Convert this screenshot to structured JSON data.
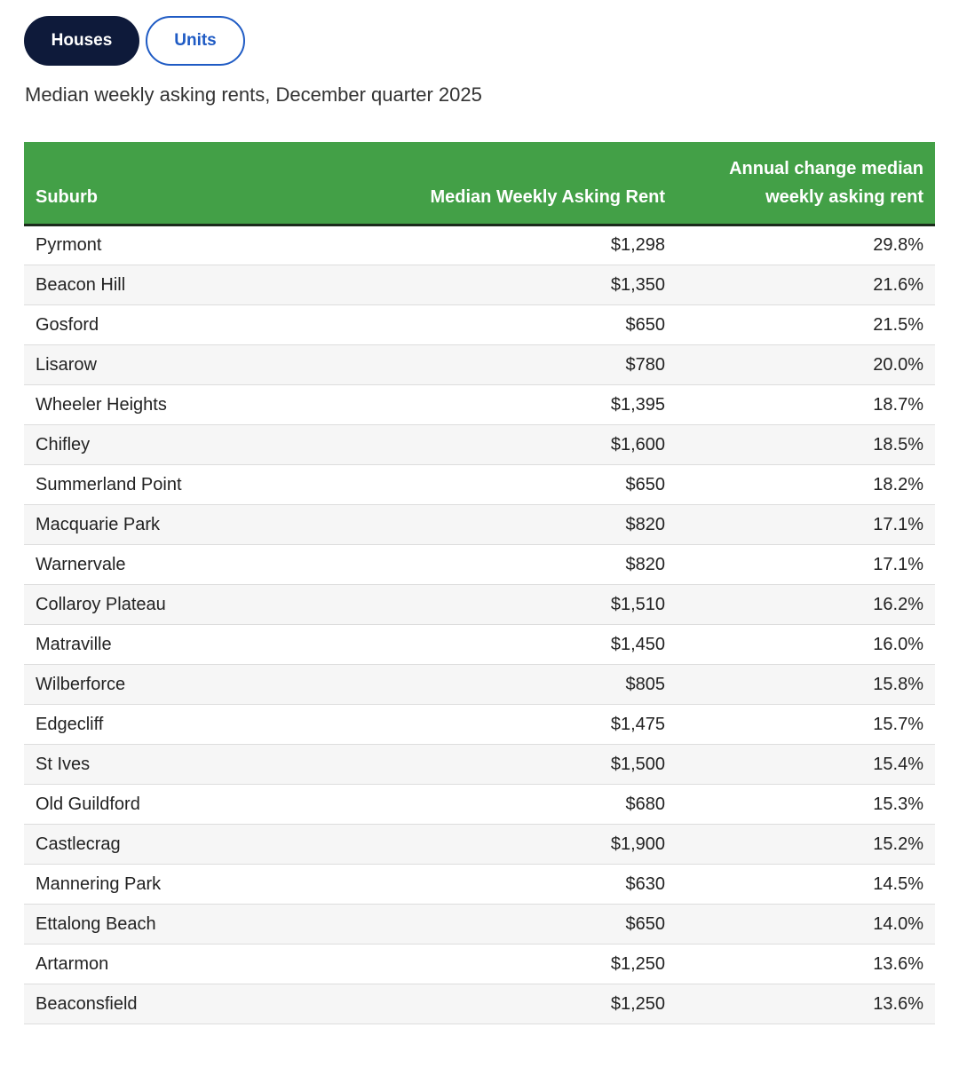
{
  "tabs": [
    "Houses",
    "Units"
  ],
  "subtitle": "Median weekly asking rents, December quarter 2025",
  "table": {
    "header": [
      "Suburb",
      "Median Weekly Asking Rent",
      "Annual change median weekly asking rent"
    ],
    "rows": [
      [
        "Pyrmont",
        "$1,298",
        "29.8%"
      ],
      [
        "Beacon Hill",
        "$1,350",
        "21.6%"
      ],
      [
        "Gosford",
        "$650",
        "21.5%"
      ],
      [
        "Lisarow",
        "$780",
        "20.0%"
      ],
      [
        "Wheeler Heights",
        "$1,395",
        "18.7%"
      ],
      [
        "Chifley",
        "$1,600",
        "18.5%"
      ],
      [
        "Summerland Point",
        "$650",
        "18.2%"
      ],
      [
        "Macquarie Park",
        "$820",
        "17.1%"
      ],
      [
        "Warnervale",
        "$820",
        "17.1%"
      ],
      [
        "Collaroy Plateau",
        "$1,510",
        "16.2%"
      ],
      [
        "Matraville",
        "$1,450",
        "16.0%"
      ],
      [
        "Wilberforce",
        "$805",
        "15.8%"
      ],
      [
        "Edgecliff",
        "$1,475",
        "15.7%"
      ],
      [
        "St Ives",
        "$1,500",
        "15.4%"
      ],
      [
        "Old Guildford",
        "$680",
        "15.3%"
      ],
      [
        "Castlecrag",
        "$1,900",
        "15.2%"
      ],
      [
        "Mannering Park",
        "$630",
        "14.5%"
      ],
      [
        "Ettalong Beach",
        "$650",
        "14.0%"
      ],
      [
        "Artarmon",
        "$1,250",
        "13.6%"
      ],
      [
        "Beaconsfield",
        "$1,250",
        "13.6%"
      ]
    ]
  }
}
